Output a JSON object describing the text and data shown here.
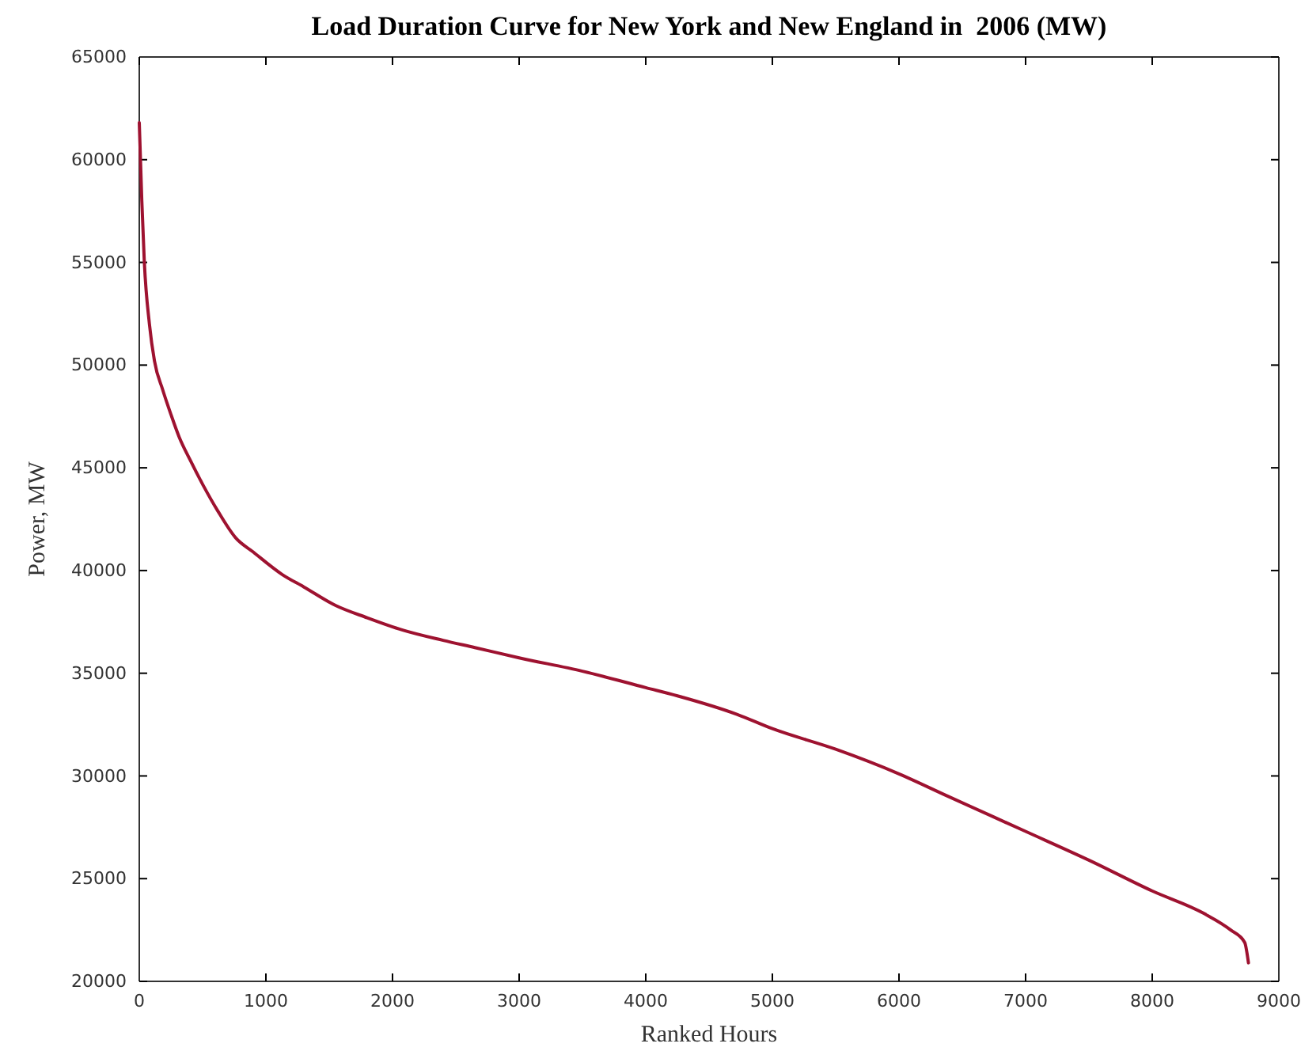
{
  "chart_data": {
    "type": "line",
    "title": "Load Duration Curve for New York and New England in  2006 (MW)",
    "xlabel": "Ranked Hours",
    "ylabel": "Power, MW",
    "x": [
      0,
      20,
      40,
      80,
      120,
      185,
      250,
      315,
      400,
      500,
      620,
      760,
      900,
      1130,
      1300,
      1550,
      1800,
      2080,
      2400,
      2650,
      3000,
      3500,
      4000,
      4250,
      4720,
      5000,
      5500,
      6000,
      6390,
      7000,
      7500,
      8000,
      8410,
      8620,
      8730,
      8760
    ],
    "series": [
      {
        "color": "#9e1230",
        "values": [
          61800,
          58000,
          55000,
          52000,
          50200,
          48800,
          47600,
          46500,
          45400,
          44200,
          42900,
          41600,
          40900,
          39800,
          39200,
          38300,
          37700,
          37100,
          36600,
          36250,
          35750,
          35100,
          34300,
          33900,
          33000,
          32300,
          31300,
          30100,
          29000,
          27300,
          25900,
          24400,
          23300,
          22500,
          21900,
          20900
        ]
      }
    ],
    "xlim": [
      0,
      9000
    ],
    "xticks": [
      0,
      1000,
      2000,
      3000,
      4000,
      5000,
      6000,
      7000,
      8000,
      9000
    ],
    "ylim": [
      20000,
      65000
    ],
    "yticks": [
      20000,
      25000,
      30000,
      35000,
      40000,
      45000,
      50000,
      55000,
      60000,
      65000
    ],
    "grid": false,
    "marker": "none",
    "line_style": "solid"
  }
}
